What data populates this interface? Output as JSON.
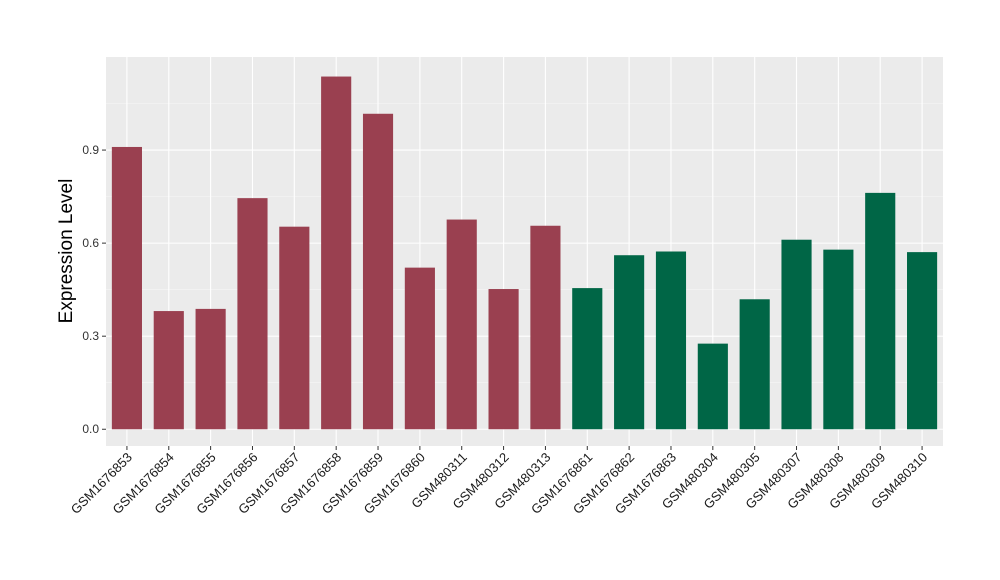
{
  "chart_data": {
    "type": "bar",
    "ylabel": "Expression Level",
    "xlabel": "",
    "ylim": [
      -0.054,
      1.2
    ],
    "yticks": [
      0.0,
      0.3,
      0.6,
      0.9
    ],
    "ytick_labels": [
      "0.0",
      "0.3",
      "0.6",
      "0.9"
    ],
    "grid": true,
    "background": "#EBEBEB",
    "categories": [
      "GSM1676853",
      "GSM1676854",
      "GSM1676855",
      "GSM1676856",
      "GSM1676857",
      "GSM1676858",
      "GSM1676859",
      "GSM1676860",
      "GSM480311",
      "GSM480312",
      "GSM480313",
      "GSM1676861",
      "GSM1676862",
      "GSM1676863",
      "GSM480304",
      "GSM480305",
      "GSM480307",
      "GSM480308",
      "GSM480309",
      "GSM480310"
    ],
    "values": [
      0.91,
      0.381,
      0.388,
      0.745,
      0.653,
      1.137,
      1.017,
      0.521,
      0.676,
      0.452,
      0.656,
      0.455,
      0.561,
      0.573,
      0.276,
      0.419,
      0.611,
      0.579,
      0.762,
      0.571
    ],
    "colors": [
      "#9A4050",
      "#9A4050",
      "#9A4050",
      "#9A4050",
      "#9A4050",
      "#9A4050",
      "#9A4050",
      "#9A4050",
      "#9A4050",
      "#9A4050",
      "#9A4050",
      "#006646",
      "#006646",
      "#006646",
      "#006646",
      "#006646",
      "#006646",
      "#006646",
      "#006646",
      "#006646"
    ]
  }
}
